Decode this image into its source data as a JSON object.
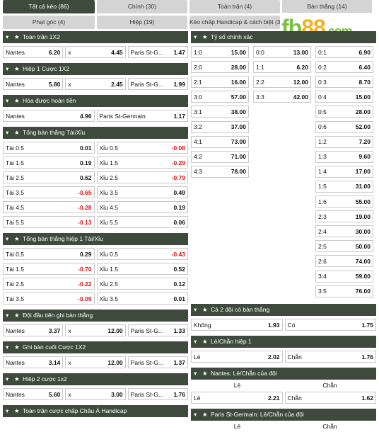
{
  "tabs": [
    {
      "label": "Tất cả kèo (86)",
      "active": true
    },
    {
      "label": "Chính (30)"
    },
    {
      "label": "Toàn trận (4)"
    },
    {
      "label": "Bàn thắng (14)"
    },
    {
      "label": "Phạt góc (4)"
    },
    {
      "label": "Hiệp (19)"
    },
    {
      "label": "Kèo chấp Handicap & cách biệt (3)"
    }
  ],
  "logo": {
    "fb": "fb",
    "n": "88",
    "dom": ".com"
  },
  "left": [
    {
      "title": "Toàn trận 1X2",
      "rows": [
        [
          [
            "Nantes",
            "6.20"
          ],
          [
            "x",
            "4.45"
          ],
          [
            "Paris St-G...",
            "1.47"
          ]
        ]
      ]
    },
    {
      "title": "Hiệp 1 Cược 1X2",
      "rows": [
        [
          [
            "Nantes",
            "5.80"
          ],
          [
            "x",
            "2.45"
          ],
          [
            "Paris St-G...",
            "1.99"
          ]
        ]
      ]
    },
    {
      "title": "Hòa được hoàn tiền",
      "rows": [
        [
          [
            "Nantes",
            "4.96"
          ],
          [
            "Paris St-Germain",
            "1.17"
          ]
        ]
      ]
    },
    {
      "title": "Tổng bàn thắng Tài/Xỉu",
      "rows": [
        [
          [
            "Tài 0.5",
            "0.01"
          ],
          [
            "Xỉu 0.5",
            "-0.08"
          ]
        ],
        [
          [
            "Tài 1.5",
            "0.19"
          ],
          [
            "Xỉu 1.5",
            "-0.29"
          ]
        ],
        [
          [
            "Tài 2.5",
            "0.62"
          ],
          [
            "Xỉu 2.5",
            "-0.79"
          ]
        ],
        [
          [
            "Tài 3.5",
            "-0.65"
          ],
          [
            "Xỉu 3.5",
            "0.49"
          ]
        ],
        [
          [
            "Tài 4.5",
            "-0.28"
          ],
          [
            "Xỉu 4.5",
            "0.19"
          ]
        ],
        [
          [
            "Tài 5.5",
            "-0.13"
          ],
          [
            "Xỉu 5.5",
            "0.06"
          ]
        ]
      ]
    },
    {
      "title": "Tổng bàn thắng hiệp 1 Tài/Xỉu",
      "rows": [
        [
          [
            "Tài 0.5",
            "0.29"
          ],
          [
            "Xỉu 0.5",
            "-0.43"
          ]
        ],
        [
          [
            "Tài 1.5",
            "-0.70"
          ],
          [
            "Xỉu 1.5",
            "0.52"
          ]
        ],
        [
          [
            "Tài 2.5",
            "-0.22"
          ],
          [
            "Xỉu 2.5",
            "0.12"
          ]
        ],
        [
          [
            "Tài 3.5",
            "-0.09"
          ],
          [
            "Xỉu 3.5",
            "0.01"
          ]
        ]
      ]
    },
    {
      "title": "Đội đầu tiên ghi bàn thắng",
      "rows": [
        [
          [
            "Nantes",
            "3.37"
          ],
          [
            "x",
            "12.00"
          ],
          [
            "Paris St-G...",
            "1.33"
          ]
        ]
      ]
    },
    {
      "title": "Ghi bàn cuối Cược 1X2",
      "rows": [
        [
          [
            "Nantes",
            "3.14"
          ],
          [
            "x",
            "12.00"
          ],
          [
            "Paris St-G...",
            "1.37"
          ]
        ]
      ]
    },
    {
      "title": "Hiệp 2 cược 1x2",
      "rows": [
        [
          [
            "Nantes",
            "5.60"
          ],
          [
            "x",
            "3.00"
          ],
          [
            "Paris St-G...",
            "1.76"
          ]
        ]
      ]
    },
    {
      "title": "Toàn trận cược chấp Châu Á Handicap",
      "rows": []
    }
  ],
  "correct_score": {
    "title": "Tỷ số chính xác",
    "c1": [
      [
        "1:0",
        "15.00"
      ],
      [
        "2:0",
        "28.00"
      ],
      [
        "2:1",
        "16.00"
      ],
      [
        "3:0",
        "57.00"
      ],
      [
        "3:1",
        "38.00"
      ],
      [
        "3:2",
        "37.00"
      ],
      [
        "4:1",
        "73.00"
      ],
      [
        "4:2",
        "71.00"
      ],
      [
        "4:3",
        "78.00"
      ]
    ],
    "c2": [
      [
        "0:0",
        "13.00"
      ],
      [
        "1:1",
        "6.20"
      ],
      [
        "2:2",
        "12.00"
      ],
      [
        "3:3",
        "42.00"
      ]
    ],
    "c3": [
      [
        "0:1",
        "6.90"
      ],
      [
        "0:2",
        "6.40"
      ],
      [
        "0:3",
        "8.70"
      ],
      [
        "0:4",
        "15.00"
      ],
      [
        "0:5",
        "28.00"
      ],
      [
        "0:6",
        "52.00"
      ],
      [
        "1:2",
        "7.20"
      ],
      [
        "1:3",
        "9.60"
      ],
      [
        "1:4",
        "17.00"
      ],
      [
        "1:5",
        "31.00"
      ],
      [
        "1:6",
        "55.00"
      ],
      [
        "2:3",
        "19.00"
      ],
      [
        "2:4",
        "30.00"
      ],
      [
        "2:5",
        "50.00"
      ],
      [
        "2:6",
        "74.00"
      ],
      [
        "3:4",
        "59.00"
      ],
      [
        "3:5",
        "76.00"
      ]
    ]
  },
  "btts": {
    "title": "Cả 2 đội có bàn thắng",
    "rows": [
      [
        [
          "Không",
          "1.93"
        ],
        [
          "Có",
          "1.75"
        ]
      ]
    ]
  },
  "oe_h1": {
    "title": "Lẻ/Chẵn hiệp 1",
    "rows": [
      [
        [
          "Lẻ",
          "2.02"
        ],
        [
          "Chẵn",
          "1.76"
        ]
      ]
    ]
  },
  "oe_nantes": {
    "title": "Nantes: Lẻ/Chẵn của đội",
    "sub": [
      "Lẻ",
      "Chẵn"
    ],
    "rows": [
      [
        [
          "Lẻ",
          "2.21"
        ],
        [
          "Chẵn",
          "1.62"
        ]
      ]
    ]
  },
  "oe_psg": {
    "title": "Paris St-Germain: Lẻ/Chẵn của đội",
    "sub": [
      "Lẻ",
      "Chẵn"
    ]
  }
}
